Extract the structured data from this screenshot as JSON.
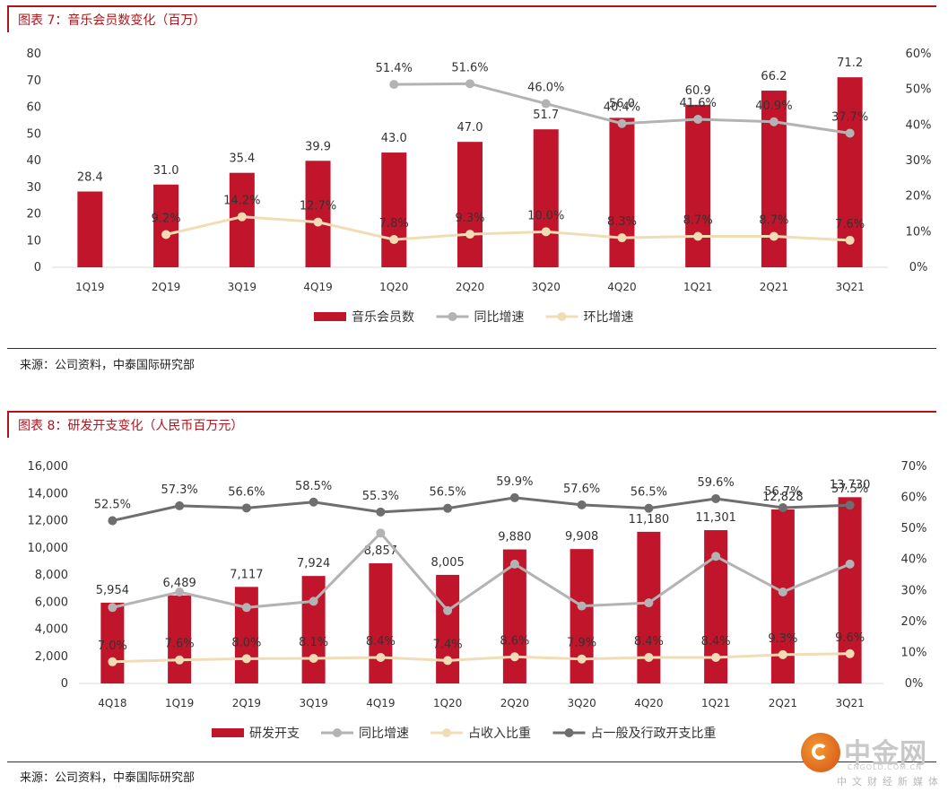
{
  "figure1": {
    "title": "图表 7：音乐会员数变化（百万）",
    "source": "来源：公司资料，中泰国际研究部"
  },
  "figure2": {
    "title": "图表 8：研发开支变化（人民币百万元）",
    "source": "来源：公司资料，中泰国际研究部"
  },
  "watermark": {
    "name": "中金网",
    "url": "CNGOLD.COM.CN",
    "sub": "中文财经新媒体"
  },
  "colors": {
    "bar": "#c0152a",
    "gray_line": "#b3b3b3",
    "dark_line": "#6e6e6e",
    "tan_line": "#f1ddb5",
    "accent": "#b0151e"
  },
  "chart_data": [
    {
      "type": "bar",
      "categories": [
        "1Q19",
        "2Q19",
        "3Q19",
        "4Q19",
        "1Q20",
        "2Q20",
        "3Q20",
        "4Q20",
        "1Q21",
        "2Q21",
        "3Q21"
      ],
      "ylim": [
        0,
        80
      ],
      "yticks": [
        0,
        10,
        20,
        30,
        40,
        50,
        60,
        70,
        80
      ],
      "y2lim": [
        0,
        0.6
      ],
      "y2ticks": [
        "0%",
        "10%",
        "20%",
        "30%",
        "40%",
        "50%",
        "60%"
      ],
      "series": [
        {
          "name": "音乐会员数",
          "kind": "bar",
          "axis": "left",
          "color": "#c0152a",
          "values": [
            28.4,
            31.0,
            35.4,
            39.9,
            43.0,
            47.0,
            51.7,
            56.0,
            60.9,
            66.2,
            71.2
          ],
          "labels": [
            "28.4",
            "31.0",
            "35.4",
            "39.9",
            "43.0",
            "47.0",
            "51.7",
            "56.0",
            "60.9",
            "66.2",
            "71.2"
          ]
        },
        {
          "name": "同比增速",
          "kind": "line",
          "axis": "right",
          "color": "#b3b3b3",
          "values": [
            null,
            null,
            null,
            null,
            0.514,
            0.516,
            0.46,
            0.404,
            0.416,
            0.409,
            0.377
          ],
          "labels": [
            "",
            "",
            "",
            "",
            "51.4%",
            "51.6%",
            "46.0%",
            "40.4%",
            "41.6%",
            "40.9%",
            "37.7%"
          ]
        },
        {
          "name": "环比增速",
          "kind": "line",
          "axis": "right",
          "color": "#f1ddb5",
          "values": [
            null,
            0.092,
            0.142,
            0.127,
            0.078,
            0.093,
            0.1,
            0.083,
            0.087,
            0.087,
            0.076
          ],
          "labels": [
            "",
            "9.2%",
            "14.2%",
            "12.7%",
            "7.8%",
            "9.3%",
            "10.0%",
            "8.3%",
            "8.7%",
            "8.7%",
            "7.6%"
          ]
        }
      ],
      "legend": "bottom"
    },
    {
      "type": "bar",
      "categories": [
        "4Q18",
        "1Q19",
        "2Q19",
        "3Q19",
        "4Q19",
        "1Q20",
        "2Q20",
        "3Q20",
        "4Q20",
        "1Q21",
        "2Q21",
        "3Q21"
      ],
      "ylim": [
        0,
        16000
      ],
      "yticks": [
        "0",
        "2,000",
        "4,000",
        "6,000",
        "8,000",
        "10,000",
        "12,000",
        "14,000",
        "16,000"
      ],
      "y2lim": [
        0,
        0.7
      ],
      "y2ticks": [
        "0%",
        "10%",
        "20%",
        "30%",
        "40%",
        "50%",
        "60%",
        "70%"
      ],
      "series": [
        {
          "name": "研发开支",
          "kind": "bar",
          "axis": "left",
          "color": "#c0152a",
          "values": [
            5954,
            6489,
            7117,
            7924,
            8857,
            8005,
            9880,
            9908,
            11180,
            11301,
            12828,
            13730
          ],
          "labels": [
            "5,954",
            "6,489",
            "7,117",
            "7,924",
            "8,857",
            "8,005",
            "9,880",
            "9,908",
            "11,180",
            "11,301",
            "12,828",
            "13,730"
          ]
        },
        {
          "name": "同比增速",
          "kind": "line",
          "axis": "right",
          "color": "#b3b3b3",
          "values": [
            0.245,
            0.295,
            0.245,
            0.265,
            0.485,
            0.235,
            0.385,
            0.25,
            0.26,
            0.41,
            0.295,
            0.385
          ],
          "labels": [
            "",
            "",
            "",
            "",
            "",
            "",
            "",
            "",
            "",
            "",
            "",
            ""
          ]
        },
        {
          "name": "占收入比重",
          "kind": "line",
          "axis": "right",
          "color": "#f1ddb5",
          "values": [
            0.07,
            0.076,
            0.08,
            0.081,
            0.084,
            0.074,
            0.086,
            0.079,
            0.084,
            0.084,
            0.093,
            0.096
          ],
          "labels": [
            "7.0%",
            "7.6%",
            "8.0%",
            "8.1%",
            "8.4%",
            "7.4%",
            "8.6%",
            "7.9%",
            "8.4%",
            "8.4%",
            "9.3%",
            "9.6%"
          ]
        },
        {
          "name": "占一般及行政开支比重",
          "kind": "line",
          "axis": "right",
          "color": "#6e6e6e",
          "values": [
            0.525,
            0.573,
            0.566,
            0.585,
            0.553,
            0.565,
            0.599,
            0.576,
            0.565,
            0.596,
            0.567,
            0.575
          ],
          "labels": [
            "52.5%",
            "57.3%",
            "56.6%",
            "58.5%",
            "55.3%",
            "56.5%",
            "59.9%",
            "57.6%",
            "56.5%",
            "59.6%",
            "56.7%",
            "57.5%"
          ]
        }
      ],
      "legend": "bottom"
    }
  ]
}
